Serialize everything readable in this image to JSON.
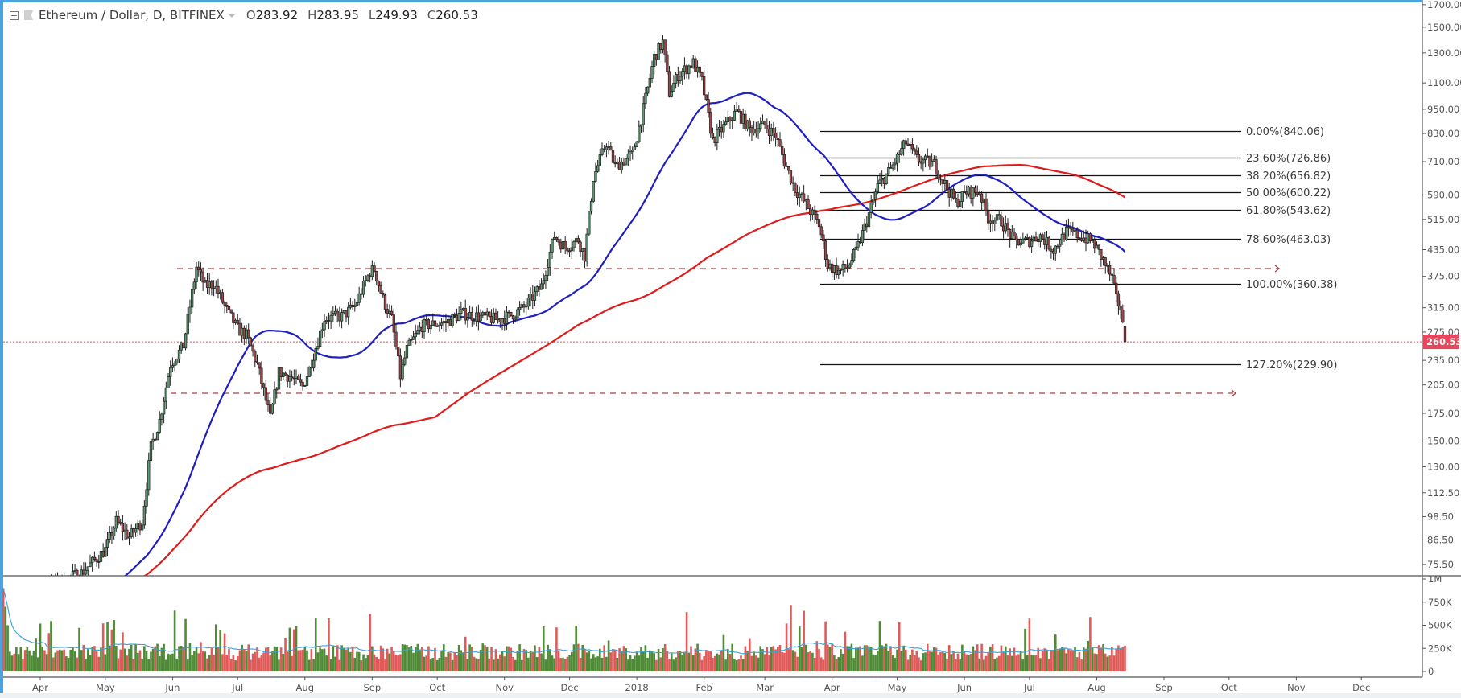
{
  "header": {
    "symbol": "Ethereum / Dollar, D, BITFINEX",
    "ohlc": [
      {
        "key": "O",
        "value": "283.92"
      },
      {
        "key": "H",
        "value": "283.95"
      },
      {
        "key": "L",
        "value": "249.93"
      },
      {
        "key": "C",
        "value": "260.53"
      }
    ]
  },
  "colors": {
    "frame": "#4aa3df",
    "candle_up": "#5f9a74",
    "candle_down": "#a0474b",
    "candle_outline": "#1e1e1e",
    "ma_fast": "#1f1fc0",
    "ma_slow": "#e01b1b",
    "volume_up": "#4f8a36",
    "volume_down": "#e05a5a",
    "volume_ma": "#3ba1d6",
    "price_tag": "#e8465a",
    "dashed_level": "#a84040"
  },
  "price_axis": {
    "ticks": [
      "1700.00",
      "1500.00",
      "1300.00",
      "1100.00",
      "950.00",
      "830.00",
      "710.00",
      "590.00",
      "515.00",
      "435.00",
      "375.00",
      "315.00",
      "275.00",
      "235.00",
      "205.00",
      "175.00",
      "150.00",
      "130.00",
      "112.50",
      "98.50",
      "86.50",
      "75.50"
    ],
    "current_price": "260.53"
  },
  "volume_axis": {
    "ticks": [
      "1M",
      "750K",
      "500K",
      "250K",
      "0"
    ]
  },
  "time_axis": {
    "labels": [
      "Apr",
      "May",
      "Jun",
      "Jul",
      "Aug",
      "Sep",
      "Oct",
      "Nov",
      "Dec",
      "2018",
      "Feb",
      "Mar",
      "Apr",
      "May",
      "Jun",
      "Jul",
      "Aug",
      "Sep",
      "Oct",
      "Nov",
      "Dec"
    ]
  },
  "fibonacci": [
    {
      "label": "0.00%(840.06)",
      "price": 840.06
    },
    {
      "label": "23.60%(726.86)",
      "price": 726.86
    },
    {
      "label": "38.20%(656.82)",
      "price": 656.82
    },
    {
      "label": "50.00%(600.22)",
      "price": 600.22
    },
    {
      "label": "61.80%(543.62)",
      "price": 543.62
    },
    {
      "label": "78.60%(463.03)",
      "price": 463.03
    },
    {
      "label": "100.00%(360.38)",
      "price": 360.38
    },
    {
      "label": "127.20%(229.90)",
      "price": 229.9
    }
  ],
  "chart_data": {
    "type": "candlestick",
    "title": "Ethereum / Dollar, D, BITFINEX",
    "scale": "log",
    "ylim": [
      72,
      1720
    ],
    "x_range": [
      "2017-03-15",
      "2018-12-31"
    ],
    "last_bar": {
      "open": 283.92,
      "high": 283.95,
      "low": 249.93,
      "close": 260.53
    },
    "price_path": [
      [
        "2017-03-15",
        50
      ],
      [
        "2017-03-28",
        52
      ],
      [
        "2017-04-01",
        66
      ],
      [
        "2017-04-20",
        72
      ],
      [
        "2017-05-01",
        82
      ],
      [
        "2017-05-06",
        96
      ],
      [
        "2017-05-12",
        88
      ],
      [
        "2017-05-18",
        96
      ],
      [
        "2017-05-22",
        145
      ],
      [
        "2017-05-26",
        168
      ],
      [
        "2017-05-31",
        230
      ],
      [
        "2017-06-06",
        255
      ],
      [
        "2017-06-12",
        395
      ],
      [
        "2017-06-16",
        355
      ],
      [
        "2017-06-20",
        360
      ],
      [
        "2017-06-26",
        310
      ],
      [
        "2017-07-01",
        280
      ],
      [
        "2017-07-05",
        270
      ],
      [
        "2017-07-10",
        230
      ],
      [
        "2017-07-16",
        170
      ],
      [
        "2017-07-20",
        220
      ],
      [
        "2017-07-25",
        215
      ],
      [
        "2017-07-31",
        203
      ],
      [
        "2017-08-03",
        224
      ],
      [
        "2017-08-10",
        297
      ],
      [
        "2017-08-18",
        300
      ],
      [
        "2017-08-24",
        318
      ],
      [
        "2017-08-31",
        385
      ],
      [
        "2017-09-02",
        390
      ],
      [
        "2017-09-06",
        330
      ],
      [
        "2017-09-10",
        295
      ],
      [
        "2017-09-14",
        215
      ],
      [
        "2017-09-17",
        250
      ],
      [
        "2017-09-24",
        285
      ],
      [
        "2017-10-05",
        290
      ],
      [
        "2017-10-12",
        305
      ],
      [
        "2017-10-20",
        300
      ],
      [
        "2017-10-28",
        295
      ],
      [
        "2017-11-03",
        300
      ],
      [
        "2017-11-10",
        315
      ],
      [
        "2017-11-18",
        355
      ],
      [
        "2017-11-24",
        470
      ],
      [
        "2017-11-29",
        440
      ],
      [
        "2017-12-05",
        460
      ],
      [
        "2017-12-08",
        420
      ],
      [
        "2017-12-12",
        650
      ],
      [
        "2017-12-18",
        790
      ],
      [
        "2017-12-22",
        690
      ],
      [
        "2017-12-30",
        740
      ],
      [
        "2018-01-04",
        950
      ],
      [
        "2018-01-09",
        1270
      ],
      [
        "2018-01-13",
        1380
      ],
      [
        "2018-01-16",
        1040
      ],
      [
        "2018-01-20",
        1150
      ],
      [
        "2018-01-27",
        1230
      ],
      [
        "2018-01-31",
        1110
      ],
      [
        "2018-02-05",
        800
      ],
      [
        "2018-02-10",
        860
      ],
      [
        "2018-02-16",
        940
      ],
      [
        "2018-02-22",
        850
      ],
      [
        "2018-03-01",
        870
      ],
      [
        "2018-03-06",
        820
      ],
      [
        "2018-03-10",
        710
      ],
      [
        "2018-03-15",
        610
      ],
      [
        "2018-03-20",
        560
      ],
      [
        "2018-03-26",
        500
      ],
      [
        "2018-03-30",
        400
      ],
      [
        "2018-04-04",
        385
      ],
      [
        "2018-04-08",
        395
      ],
      [
        "2018-04-12",
        430
      ],
      [
        "2018-04-17",
        510
      ],
      [
        "2018-04-22",
        620
      ],
      [
        "2018-04-28",
        680
      ],
      [
        "2018-05-05",
        790
      ],
      [
        "2018-05-10",
        720
      ],
      [
        "2018-05-18",
        700
      ],
      [
        "2018-05-22",
        640
      ],
      [
        "2018-05-28",
        565
      ],
      [
        "2018-06-02",
        600
      ],
      [
        "2018-06-08",
        600
      ],
      [
        "2018-06-12",
        520
      ],
      [
        "2018-06-18",
        510
      ],
      [
        "2018-06-24",
        455
      ],
      [
        "2018-06-30",
        455
      ],
      [
        "2018-07-06",
        470
      ],
      [
        "2018-07-12",
        435
      ],
      [
        "2018-07-18",
        480
      ],
      [
        "2018-07-24",
        470
      ],
      [
        "2018-07-30",
        455
      ],
      [
        "2018-08-04",
        410
      ],
      [
        "2018-08-08",
        370
      ],
      [
        "2018-08-10",
        330
      ],
      [
        "2018-08-12",
        315
      ],
      [
        "2018-08-13",
        283.92
      ],
      [
        "2018-08-14",
        260.53
      ]
    ],
    "moving_averages": [
      {
        "name": "MA fast (blue)",
        "color": "#1f1fc0"
      },
      {
        "name": "MA slow (red)",
        "color": "#e01b1b"
      }
    ],
    "horizontal_levels": [
      {
        "type": "dashed",
        "price": 395,
        "from": "2017-06-08",
        "to": "2018-08-30"
      },
      {
        "type": "dashed",
        "price": 200,
        "from": "2017-06-05",
        "to": "2018-08-12"
      }
    ],
    "volume": {
      "ylim": [
        0,
        1000000
      ],
      "ticks": [
        "1M",
        "750K",
        "500K",
        "250K",
        "0"
      ]
    }
  }
}
